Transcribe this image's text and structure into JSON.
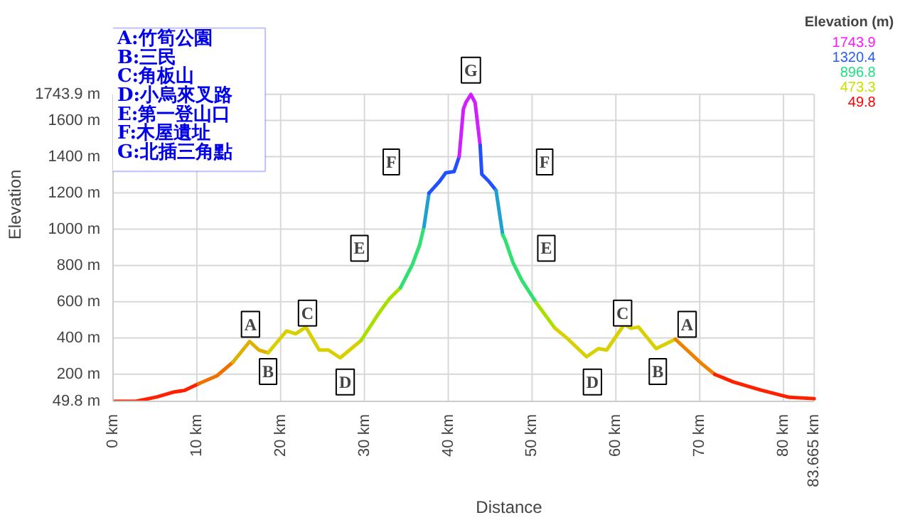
{
  "chart_data": {
    "type": "line",
    "xlabel": "Distance",
    "ylabel": "Elevation",
    "clabel": "Elevation (m)",
    "series": [
      {
        "color": "#ff2000",
        "x": [
          0,
          2.7,
          5.2,
          7.3,
          8.5,
          10.2
        ],
        "values": [
          49.8,
          50,
          74,
          102,
          110,
          147
        ]
      },
      {
        "color": "#f07000",
        "x": [
          10.2,
          12.4,
          14.3
        ],
        "values": [
          147,
          191,
          266
        ]
      },
      {
        "color": "#e0b000",
        "x": [
          14.3,
          16.3,
          17.4,
          18.5
        ],
        "values": [
          266,
          380,
          333,
          318
        ]
      },
      {
        "color": "#d8d000",
        "x": [
          18.5,
          20.7,
          21.8,
          23.0,
          24.6,
          25.7,
          27.1,
          29.6
        ],
        "values": [
          318,
          438,
          423,
          460,
          333,
          333,
          290,
          386
        ]
      },
      {
        "color": "#a8e000",
        "x": [
          29.6,
          31.8,
          33.0,
          34.3
        ],
        "values": [
          386,
          542,
          617,
          677
        ]
      },
      {
        "color": "#30e070",
        "x": [
          34.3,
          35.7,
          36.6,
          37.1
        ],
        "values": [
          677,
          803,
          915,
          1013
        ]
      },
      {
        "color": "#20a0d0",
        "x": [
          37.1,
          37.7
        ],
        "values": [
          1013,
          1199
        ]
      },
      {
        "color": "#2050ff",
        "x": [
          37.7,
          39.0,
          39.7,
          40.7,
          41.3
        ],
        "values": [
          1199,
          1266,
          1311,
          1318,
          1400
        ]
      },
      {
        "color": "#d020ff",
        "x": [
          41.3,
          41.8,
          42.1,
          42.7,
          43.2,
          43.8
        ],
        "values": [
          1400,
          1662,
          1699,
          1743.9,
          1699,
          1463
        ]
      },
      {
        "color": "#2050ff",
        "x": [
          43.8,
          44.0,
          44.8,
          45.7
        ],
        "values": [
          1463,
          1303,
          1266,
          1214
        ]
      },
      {
        "color": "#20a0d0",
        "x": [
          45.7,
          46.5
        ],
        "values": [
          1214,
          968
        ]
      },
      {
        "color": "#30e070",
        "x": [
          46.5,
          46.8,
          47.7,
          48.8,
          50.5
        ],
        "values": [
          968,
          940,
          818,
          716,
          594
        ]
      },
      {
        "color": "#a8e000",
        "x": [
          50.5,
          52.7
        ],
        "values": [
          594,
          455
        ]
      },
      {
        "color": "#d8d000",
        "x": [
          52.7,
          54.3,
          56.5,
          57.9,
          58.9,
          61.0,
          61.8,
          62.7,
          64.8,
          67.1
        ],
        "values": [
          455,
          393,
          296,
          341,
          333,
          475,
          453,
          460,
          341,
          393
        ]
      },
      {
        "color": "#f08000",
        "x": [
          67.1,
          70.2,
          71.8
        ],
        "values": [
          393,
          259,
          199
        ]
      },
      {
        "color": "#ff2000",
        "x": [
          71.8,
          74.0,
          77.3,
          80.7,
          83.665
        ],
        "values": [
          199,
          157,
          112,
          72,
          65
        ]
      }
    ],
    "xlim": [
      0,
      83.665
    ],
    "xticks": [
      {
        "value": 0,
        "label": "0 km"
      },
      {
        "value": 10,
        "label": "10 km"
      },
      {
        "value": 20,
        "label": "20 km"
      },
      {
        "value": 30,
        "label": "30 km"
      },
      {
        "value": 40,
        "label": "40 km"
      },
      {
        "value": 50,
        "label": "50 km"
      },
      {
        "value": 60,
        "label": "60 km"
      },
      {
        "value": 70,
        "label": "70 km"
      },
      {
        "value": 80,
        "label": "80 km"
      },
      {
        "value": 83.665,
        "label": "83.665 km"
      }
    ],
    "ylim": [
      49.8,
      1743.9
    ],
    "yticks": [
      {
        "value": 49.8,
        "label": "49.8 m"
      },
      {
        "value": 200,
        "label": "200 m"
      },
      {
        "value": 400,
        "label": "400 m"
      },
      {
        "value": 600,
        "label": "600 m"
      },
      {
        "value": 800,
        "label": "800 m"
      },
      {
        "value": 1000,
        "label": "1000 m"
      },
      {
        "value": 1200,
        "label": "1200 m"
      },
      {
        "value": 1400,
        "label": "1400 m"
      },
      {
        "value": 1600,
        "label": "1600 m"
      },
      {
        "value": 1743.9,
        "label": "1743.9 m"
      }
    ],
    "grid": true,
    "annotations": [
      "A:竹筍公園",
      "B:三民",
      "C:角板山",
      "D:小烏來叉路",
      "E:第一登山口",
      "F:木屋遺址",
      "G:北插三角點",
      "1743.9",
      "1320.4",
      "896.8",
      "473.3",
      "49.8",
      {
        "text": "A",
        "x": 16.4,
        "y": 475
      },
      {
        "text": "B",
        "x": 18.5,
        "y": 214
      },
      {
        "text": "C",
        "x": 23.2,
        "y": 537
      },
      {
        "text": "D",
        "x": 27.7,
        "y": 157
      },
      {
        "text": "E",
        "x": 29.4,
        "y": 895
      },
      {
        "text": "F",
        "x": 33.2,
        "y": 1371
      },
      {
        "text": "G",
        "x": 42.7,
        "y": 1743.9
      },
      {
        "text": "F",
        "x": 51.5,
        "y": 1371
      },
      {
        "text": "E",
        "x": 51.7,
        "y": 895
      },
      {
        "text": "D",
        "x": 57.2,
        "y": 157
      },
      {
        "text": "C",
        "x": 60.8,
        "y": 537
      },
      {
        "text": "B",
        "x": 65.0,
        "y": 214
      },
      {
        "text": "A",
        "x": 68.5,
        "y": 475
      }
    ]
  }
}
